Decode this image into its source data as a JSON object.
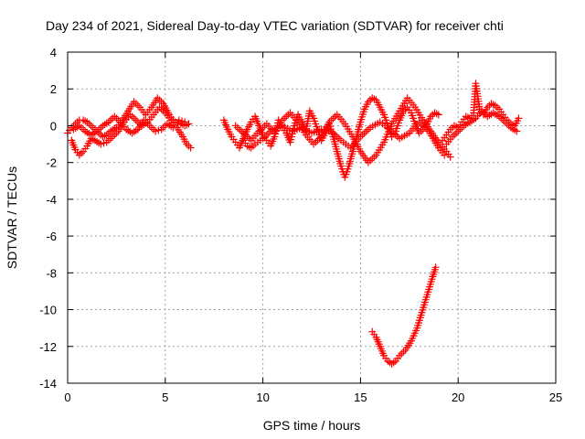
{
  "chart_data": {
    "type": "scatter",
    "title": "Day 234 of 2021, Sidereal Day-to-day VTEC variation (SDTVAR) for receiver chti",
    "xlabel": "GPS time / hours",
    "ylabel": "SDTVAR / TECUs",
    "xlim": [
      0,
      25
    ],
    "ylim": [
      -14,
      4
    ],
    "x_ticks": [
      "0",
      "5",
      "10",
      "15",
      "20",
      "25"
    ],
    "y_ticks": [
      "4",
      "2",
      "0",
      "-2",
      "-4",
      "-6",
      "-8",
      "-10",
      "-12",
      "-14"
    ],
    "grid": true,
    "legend": "none",
    "marker": "plus",
    "color": "#ff0000",
    "series": [
      {
        "values_xy": [
          [
            0.0,
            -0.4
          ],
          [
            0.2,
            -0.1
          ],
          [
            0.4,
            0.1
          ],
          [
            0.6,
            0.3
          ],
          [
            0.8,
            0.3
          ],
          [
            1.0,
            0.2
          ],
          [
            1.2,
            0.0
          ],
          [
            1.4,
            -0.2
          ],
          [
            1.6,
            -0.4
          ],
          [
            1.8,
            -0.6
          ],
          [
            2.0,
            -0.5
          ],
          [
            2.2,
            -0.3
          ],
          [
            2.5,
            -0.1
          ],
          [
            2.8,
            0.3
          ],
          [
            3.1,
            0.8
          ],
          [
            3.4,
            1.3
          ],
          [
            3.7,
            1.0
          ],
          [
            4.0,
            0.6
          ],
          [
            4.3,
            1.0
          ],
          [
            4.6,
            1.5
          ],
          [
            4.9,
            1.2
          ],
          [
            5.2,
            0.6
          ],
          [
            5.5,
            0.2
          ],
          [
            5.8,
            0.1
          ],
          [
            6.0,
            0.0
          ],
          [
            6.2,
            0.1
          ]
        ]
      },
      {
        "values_xy": [
          [
            0.2,
            -0.8
          ],
          [
            0.4,
            -1.3
          ],
          [
            0.6,
            -1.6
          ],
          [
            0.8,
            -1.4
          ],
          [
            1.0,
            -1.1
          ],
          [
            1.2,
            -0.7
          ],
          [
            1.4,
            -0.8
          ],
          [
            1.7,
            -1.0
          ],
          [
            2.0,
            -0.9
          ],
          [
            2.3,
            -0.6
          ],
          [
            2.6,
            -0.3
          ],
          [
            2.9,
            0.2
          ],
          [
            3.2,
            0.6
          ],
          [
            3.5,
            0.3
          ],
          [
            3.8,
            0.0
          ],
          [
            4.1,
            0.2
          ],
          [
            4.4,
            0.6
          ],
          [
            4.7,
            1.0
          ],
          [
            5.0,
            0.7
          ],
          [
            5.3,
            0.3
          ],
          [
            5.6,
            -0.1
          ],
          [
            5.9,
            -0.6
          ],
          [
            6.1,
            -1.0
          ],
          [
            6.3,
            -1.2
          ]
        ]
      },
      {
        "values_xy": [
          [
            0.3,
            -0.2
          ],
          [
            0.6,
            0.0
          ],
          [
            0.9,
            -0.3
          ],
          [
            1.2,
            -0.5
          ],
          [
            1.5,
            -0.3
          ],
          [
            1.8,
            0.0
          ],
          [
            2.1,
            0.2
          ],
          [
            2.4,
            0.5
          ],
          [
            2.7,
            0.2
          ],
          [
            3.0,
            -0.2
          ],
          [
            3.3,
            -0.4
          ],
          [
            3.6,
            -0.2
          ],
          [
            3.9,
            0.3
          ],
          [
            4.2,
            0.0
          ],
          [
            4.5,
            -0.3
          ],
          [
            4.8,
            -0.2
          ],
          [
            5.1,
            0.1
          ],
          [
            5.4,
            -0.1
          ],
          [
            5.7,
            0.3
          ],
          [
            6.0,
            0.2
          ]
        ]
      },
      {
        "values_xy": [
          [
            8.0,
            0.3
          ],
          [
            8.2,
            -0.2
          ],
          [
            8.4,
            -0.6
          ],
          [
            8.6,
            -0.9
          ],
          [
            8.8,
            -1.2
          ],
          [
            9.0,
            -0.7
          ],
          [
            9.2,
            -0.2
          ],
          [
            9.4,
            0.2
          ],
          [
            9.6,
            0.5
          ],
          [
            9.8,
            0.0
          ],
          [
            10.0,
            -0.5
          ],
          [
            10.2,
            -0.8
          ],
          [
            10.4,
            -1.1
          ],
          [
            10.6,
            -0.6
          ],
          [
            10.8,
            0.3
          ],
          [
            11.0,
            -0.1
          ],
          [
            11.2,
            -0.4
          ],
          [
            11.4,
            -0.9
          ],
          [
            11.6,
            0.0
          ],
          [
            11.8,
            0.6
          ],
          [
            12.0,
            0.2
          ],
          [
            12.2,
            -0.3
          ],
          [
            12.4,
            0.8
          ],
          [
            12.6,
            0.4
          ],
          [
            12.8,
            -0.2
          ],
          [
            13.0,
            -0.8
          ],
          [
            13.2,
            -0.4
          ],
          [
            13.4,
            0.1
          ],
          [
            13.6,
            -0.6
          ],
          [
            13.8,
            -1.4
          ],
          [
            14.0,
            -2.2
          ],
          [
            14.2,
            -2.8
          ],
          [
            14.4,
            -2.2
          ],
          [
            14.6,
            -1.4
          ],
          [
            14.8,
            -0.6
          ],
          [
            15.0,
            0.2
          ],
          [
            15.2,
            0.9
          ],
          [
            15.4,
            1.3
          ],
          [
            15.6,
            1.5
          ],
          [
            15.8,
            1.4
          ],
          [
            16.0,
            1.0
          ],
          [
            16.2,
            0.6
          ],
          [
            16.4,
            0.0
          ],
          [
            16.6,
            -0.6
          ],
          [
            16.8,
            -0.3
          ],
          [
            17.0,
            0.3
          ],
          [
            17.2,
            0.8
          ],
          [
            17.4,
            1.0
          ],
          [
            17.6,
            0.7
          ],
          [
            17.8,
            0.1
          ],
          [
            18.0,
            -0.4
          ],
          [
            18.2,
            -0.2
          ],
          [
            18.4,
            0.1
          ],
          [
            18.6,
            0.5
          ],
          [
            18.8,
            0.7
          ],
          [
            19.0,
            0.6
          ]
        ]
      },
      {
        "values_xy": [
          [
            8.6,
            0.0
          ],
          [
            9.0,
            -0.4
          ],
          [
            9.4,
            -0.8
          ],
          [
            9.8,
            -0.3
          ],
          [
            10.2,
            0.1
          ],
          [
            10.6,
            -0.4
          ],
          [
            11.0,
            0.3
          ],
          [
            11.4,
            0.7
          ],
          [
            11.8,
            0.2
          ],
          [
            12.2,
            -0.5
          ],
          [
            12.6,
            -1.0
          ],
          [
            13.0,
            -0.6
          ],
          [
            13.4,
            0.2
          ],
          [
            13.8,
            0.6
          ],
          [
            14.2,
            0.1
          ],
          [
            14.6,
            -0.6
          ],
          [
            15.0,
            -1.4
          ],
          [
            15.4,
            -2.0
          ],
          [
            15.8,
            -1.6
          ],
          [
            16.2,
            -0.9
          ],
          [
            16.6,
            0.1
          ],
          [
            17.0,
            0.8
          ],
          [
            17.4,
            1.5
          ],
          [
            17.8,
            1.0
          ],
          [
            18.2,
            0.3
          ],
          [
            18.6,
            -0.3
          ],
          [
            19.0,
            -0.9
          ],
          [
            19.4,
            -1.4
          ],
          [
            19.6,
            -1.7
          ]
        ]
      },
      {
        "values_xy": [
          [
            9.0,
            -0.8
          ],
          [
            9.2,
            -1.1
          ],
          [
            9.4,
            -1.2
          ],
          [
            9.6,
            -1.0
          ],
          [
            10.0,
            -0.7
          ],
          [
            10.5,
            -0.2
          ],
          [
            11.0,
            0.0
          ],
          [
            11.5,
            -0.3
          ],
          [
            12.0,
            -0.1
          ],
          [
            12.5,
            -0.4
          ],
          [
            13.0,
            -0.2
          ],
          [
            13.5,
            -0.3
          ],
          [
            14.0,
            -0.8
          ],
          [
            14.5,
            -1.2
          ],
          [
            15.0,
            -0.6
          ],
          [
            15.5,
            -0.1
          ],
          [
            16.0,
            0.2
          ],
          [
            16.5,
            -0.2
          ],
          [
            17.0,
            -0.7
          ],
          [
            17.5,
            -0.4
          ],
          [
            18.0,
            0.2
          ],
          [
            18.5,
            -0.3
          ],
          [
            19.0,
            -1.2
          ],
          [
            19.3,
            -1.6
          ]
        ]
      },
      {
        "values_xy": [
          [
            19.2,
            -0.8
          ],
          [
            19.4,
            -0.5
          ],
          [
            19.6,
            -0.2
          ],
          [
            19.8,
            0.0
          ],
          [
            20.0,
            -0.1
          ],
          [
            20.2,
            0.2
          ],
          [
            20.4,
            0.5
          ],
          [
            20.6,
            0.4
          ],
          [
            20.8,
            0.7
          ],
          [
            20.9,
            2.3
          ],
          [
            21.0,
            1.6
          ],
          [
            21.1,
            0.9
          ],
          [
            21.3,
            0.6
          ],
          [
            21.5,
            1.0
          ],
          [
            21.7,
            1.2
          ],
          [
            21.9,
            1.1
          ],
          [
            22.1,
            0.9
          ],
          [
            22.3,
            0.6
          ],
          [
            22.5,
            0.3
          ],
          [
            22.7,
            0.1
          ],
          [
            22.9,
            0.0
          ],
          [
            23.1,
            0.4
          ]
        ]
      },
      {
        "values_xy": [
          [
            19.4,
            -1.0
          ],
          [
            19.7,
            -0.6
          ],
          [
            20.0,
            -0.3
          ],
          [
            20.3,
            0.0
          ],
          [
            20.6,
            0.2
          ],
          [
            20.9,
            0.4
          ],
          [
            21.2,
            0.8
          ],
          [
            21.5,
            0.5
          ],
          [
            21.8,
            0.7
          ],
          [
            22.1,
            0.5
          ],
          [
            22.4,
            0.2
          ],
          [
            22.7,
            -0.1
          ],
          [
            23.0,
            -0.3
          ]
        ]
      },
      {
        "values_xy": [
          [
            15.6,
            -11.2
          ],
          [
            15.8,
            -11.5
          ],
          [
            16.0,
            -12.0
          ],
          [
            16.2,
            -12.5
          ],
          [
            16.4,
            -12.8
          ],
          [
            16.6,
            -12.95
          ],
          [
            16.8,
            -12.8
          ],
          [
            17.0,
            -12.5
          ],
          [
            17.3,
            -12.2
          ],
          [
            17.6,
            -11.7
          ],
          [
            17.9,
            -11.0
          ],
          [
            18.1,
            -10.3
          ],
          [
            18.3,
            -9.6
          ],
          [
            18.5,
            -8.9
          ],
          [
            18.7,
            -8.2
          ],
          [
            18.85,
            -7.7
          ]
        ]
      }
    ]
  }
}
